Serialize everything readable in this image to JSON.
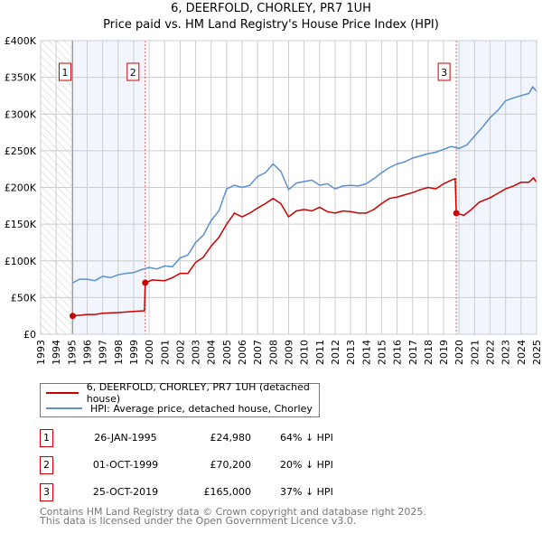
{
  "chart_data": {
    "type": "line",
    "title": "6, DEERFOLD, CHORLEY, PR7 1UH",
    "subtitle": "Price paid vs. HM Land Registry's House Price Index (HPI)",
    "xlim": [
      1993,
      2025
    ],
    "ylim": [
      0,
      400000
    ],
    "x_ticks": [
      "1993",
      "1994",
      "1995",
      "1996",
      "1997",
      "1998",
      "1999",
      "2000",
      "2001",
      "2002",
      "2003",
      "2004",
      "2005",
      "2006",
      "2007",
      "2008",
      "2009",
      "2010",
      "2011",
      "2012",
      "2013",
      "2014",
      "2015",
      "2016",
      "2017",
      "2018",
      "2019",
      "2020",
      "2021",
      "2022",
      "2023",
      "2024",
      "2025"
    ],
    "y_ticks": [
      {
        "v": 0,
        "label": "£0"
      },
      {
        "v": 50000,
        "label": "£50K"
      },
      {
        "v": 100000,
        "label": "£100K"
      },
      {
        "v": 150000,
        "label": "£150K"
      },
      {
        "v": 200000,
        "label": "£200K"
      },
      {
        "v": 250000,
        "label": "£250K"
      },
      {
        "v": 300000,
        "label": "£300K"
      },
      {
        "v": 350000,
        "label": "£350K"
      },
      {
        "v": 400000,
        "label": "£400K"
      }
    ],
    "grid": true,
    "series": [
      {
        "name": "6, DEERFOLD, CHORLEY, PR7 1UH (detached house)",
        "color": "#cc0000",
        "x": [
          1995.07,
          1996,
          1996.5,
          1997,
          1998,
          1999,
          1999.7,
          1999.75,
          2000.2,
          2001,
          2001.5,
          2002,
          2002.5,
          2003,
          2003.5,
          2004,
          2004.5,
          2005,
          2005.5,
          2006,
          2006.5,
          2007,
          2007.5,
          2008,
          2008.5,
          2009,
          2009.5,
          2010,
          2010.5,
          2011,
          2011.5,
          2012,
          2012.5,
          2013,
          2013.5,
          2014,
          2014.5,
          2015,
          2015.5,
          2016,
          2016.5,
          2017,
          2017.5,
          2018,
          2018.5,
          2019,
          2019.5,
          2019.75,
          2019.82,
          2020.3,
          2020.8,
          2021.3,
          2022,
          2022.5,
          2023,
          2023.5,
          2024,
          2024.5,
          2024.8,
          2025
        ],
        "y": [
          24980,
          27000,
          27000,
          28500,
          29500,
          31000,
          32000,
          70200,
          74000,
          73000,
          77000,
          83000,
          83000,
          98000,
          105000,
          120000,
          132000,
          150000,
          165000,
          160000,
          165000,
          172000,
          178000,
          185000,
          178000,
          160000,
          168000,
          170000,
          168000,
          173000,
          167000,
          165000,
          168000,
          167000,
          165000,
          165000,
          170000,
          178000,
          185000,
          187000,
          190000,
          193000,
          197000,
          200000,
          198000,
          205000,
          210000,
          212000,
          165000,
          162000,
          170000,
          180000,
          186000,
          192000,
          198000,
          202000,
          207000,
          207000,
          213000,
          207000
        ]
      },
      {
        "name": "HPI: Average price, detached house, Chorley",
        "color": "#5b8fd0",
        "x": [
          1995.07,
          1995.5,
          1996,
          1996.5,
          1997,
          1997.5,
          1998,
          1998.5,
          1999,
          1999.5,
          2000,
          2000.5,
          2001,
          2001.5,
          2002,
          2002.5,
          2003,
          2003.5,
          2004,
          2004.5,
          2005,
          2005.5,
          2006,
          2006.5,
          2007,
          2007.5,
          2008,
          2008.5,
          2009,
          2009.5,
          2010,
          2010.5,
          2011,
          2011.5,
          2012,
          2012.5,
          2013,
          2013.5,
          2014,
          2014.5,
          2015,
          2015.5,
          2016,
          2016.5,
          2017,
          2017.5,
          2018,
          2018.5,
          2019,
          2019.5,
          2020,
          2020.5,
          2021,
          2021.5,
          2022,
          2022.5,
          2023,
          2023.5,
          2024,
          2024.5,
          2024.75,
          2025
        ],
        "y": [
          70000,
          75000,
          75000,
          73000,
          79000,
          77000,
          81000,
          83000,
          84000,
          88000,
          91000,
          89000,
          93000,
          92000,
          104000,
          108000,
          125000,
          135000,
          155000,
          168000,
          198000,
          203000,
          200000,
          203000,
          215000,
          220000,
          232000,
          222000,
          197000,
          206000,
          208000,
          210000,
          203000,
          205000,
          198000,
          202000,
          203000,
          202000,
          205000,
          212000,
          220000,
          227000,
          232000,
          235000,
          240000,
          243000,
          246000,
          248000,
          252000,
          256000,
          253000,
          258000,
          270000,
          282000,
          295000,
          305000,
          318000,
          322000,
          325000,
          328000,
          337000,
          331000
        ]
      }
    ],
    "legend": {
      "placement": "below",
      "entries": [
        "6, DEERFOLD, CHORLEY, PR7 1UH (detached house)",
        "HPI: Average price, detached house, Chorley"
      ]
    },
    "annotations": [
      {
        "label": "1",
        "x": 1995.07,
        "y": 24980
      },
      {
        "label": "2",
        "x": 1999.75,
        "y": 70200
      },
      {
        "label": "3",
        "x": 2019.82,
        "y": 165000
      }
    ],
    "shaded_ranges": [
      [
        1995.07,
        1999.75
      ],
      [
        2019.82,
        2025
      ]
    ],
    "hatched_range": [
      1993,
      1995.07
    ]
  },
  "transactions": [
    {
      "num": "1",
      "date": "26-JAN-1995",
      "price": "£24,980",
      "hpi": "64% ↓ HPI"
    },
    {
      "num": "2",
      "date": "01-OCT-1999",
      "price": "£70,200",
      "hpi": "20% ↓ HPI"
    },
    {
      "num": "3",
      "date": "25-OCT-2019",
      "price": "£165,000",
      "hpi": "37% ↓ HPI"
    }
  ],
  "footer": {
    "line1": "Contains HM Land Registry data © Crown copyright and database right 2025.",
    "line2": "This data is licensed under the Open Government Licence v3.0."
  }
}
